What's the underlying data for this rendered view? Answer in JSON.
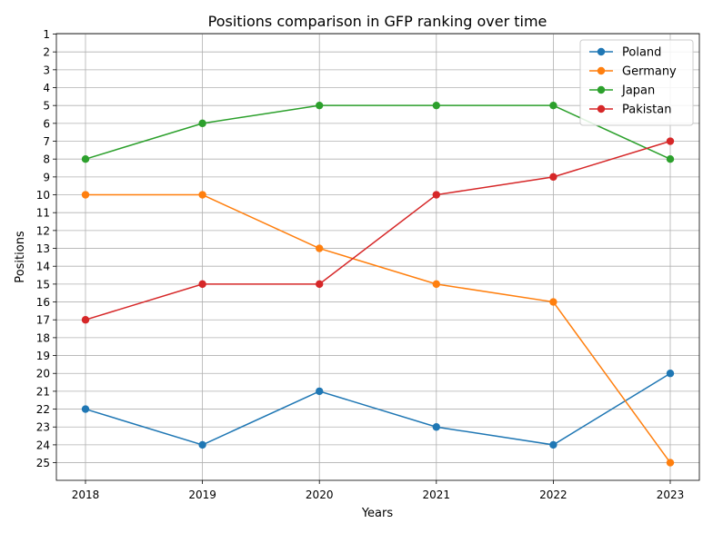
{
  "chart_data": {
    "type": "line",
    "title": "Positions comparison in GFP ranking over time",
    "xlabel": "Years",
    "ylabel": "Positions",
    "categories": [
      "2018",
      "2019",
      "2020",
      "2021",
      "2022",
      "2023"
    ],
    "y_ticks": [
      "1",
      "2",
      "3",
      "4",
      "5",
      "6",
      "7",
      "8",
      "9",
      "10",
      "11",
      "12",
      "13",
      "14",
      "15",
      "16",
      "17",
      "18",
      "19",
      "20",
      "21",
      "22",
      "23",
      "24",
      "25"
    ],
    "ylim": [
      1,
      25
    ],
    "y_inverted": true,
    "grid": true,
    "legend_position": "top-right",
    "series": [
      {
        "name": "Poland",
        "color": "#1f77b4",
        "values": [
          22,
          24,
          21,
          23,
          24,
          20
        ]
      },
      {
        "name": "Germany",
        "color": "#ff7f0e",
        "values": [
          10,
          10,
          13,
          15,
          16,
          25
        ]
      },
      {
        "name": "Japan",
        "color": "#2ca02c",
        "values": [
          8,
          6,
          5,
          5,
          5,
          8
        ]
      },
      {
        "name": "Pakistan",
        "color": "#d62728",
        "values": [
          17,
          15,
          15,
          10,
          9,
          7
        ]
      }
    ]
  }
}
